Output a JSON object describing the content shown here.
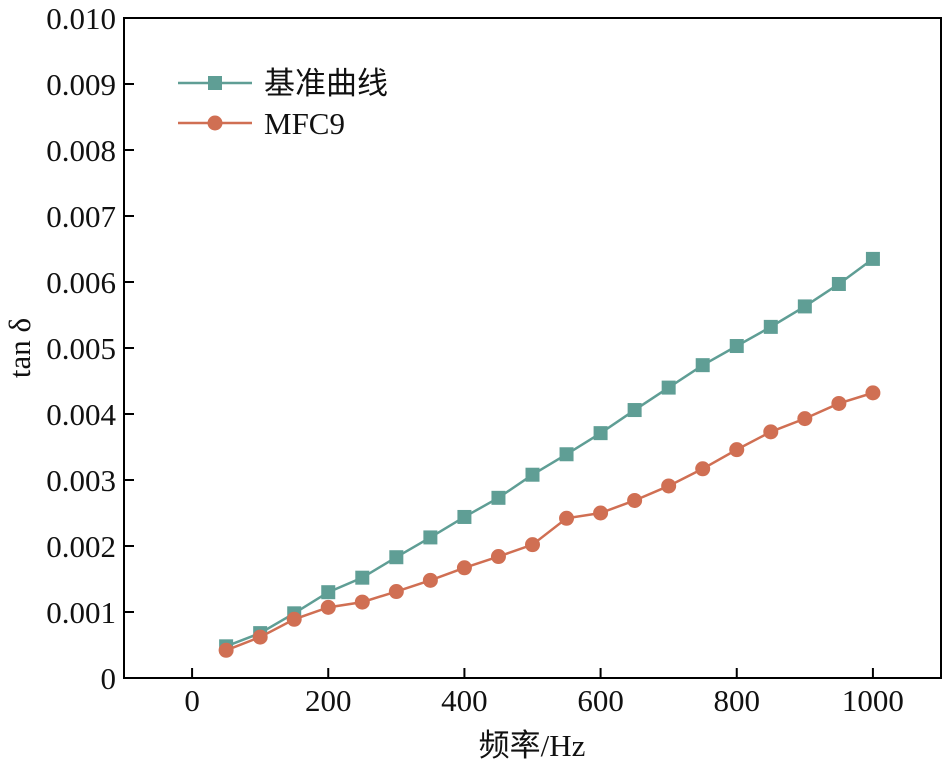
{
  "chart_data": {
    "type": "line",
    "xlabel": "频率/Hz",
    "ylabel": "tan δ",
    "xlim": [
      -100,
      1100
    ],
    "ylim": [
      0,
      0.01
    ],
    "xticks": [
      0,
      200,
      400,
      600,
      800,
      1000
    ],
    "xtick_labels": [
      "0",
      "200",
      "400",
      "600",
      "800",
      "1000"
    ],
    "yticks": [
      0,
      0.001,
      0.002,
      0.003,
      0.004,
      0.005,
      0.006,
      0.007,
      0.008,
      0.009,
      0.01
    ],
    "ytick_labels": [
      "0",
      "0.001",
      "0.002",
      "0.003",
      "0.004",
      "0.005",
      "0.006",
      "0.007",
      "0.008",
      "0.009",
      "0.010"
    ],
    "grid": false,
    "legend_position": "top-left",
    "x": [
      50,
      100,
      150,
      200,
      250,
      300,
      350,
      400,
      450,
      500,
      550,
      600,
      650,
      700,
      750,
      800,
      850,
      900,
      950,
      1000
    ],
    "series": [
      {
        "name": "基准曲线",
        "color": "#5f9e95",
        "marker": "square",
        "values": [
          0.00048,
          0.00068,
          0.00098,
          0.0013,
          0.00152,
          0.00183,
          0.00213,
          0.00244,
          0.00273,
          0.00308,
          0.00339,
          0.00371,
          0.00406,
          0.0044,
          0.00474,
          0.00503,
          0.00532,
          0.00563,
          0.00597,
          0.00635
        ]
      },
      {
        "name": "MFC9",
        "color": "#d06f53",
        "marker": "circle",
        "values": [
          0.00042,
          0.00062,
          0.00089,
          0.00107,
          0.00115,
          0.00131,
          0.00148,
          0.00167,
          0.00184,
          0.00202,
          0.00242,
          0.0025,
          0.00269,
          0.00291,
          0.00317,
          0.00346,
          0.00373,
          0.00393,
          0.00416,
          0.00432
        ]
      }
    ]
  }
}
